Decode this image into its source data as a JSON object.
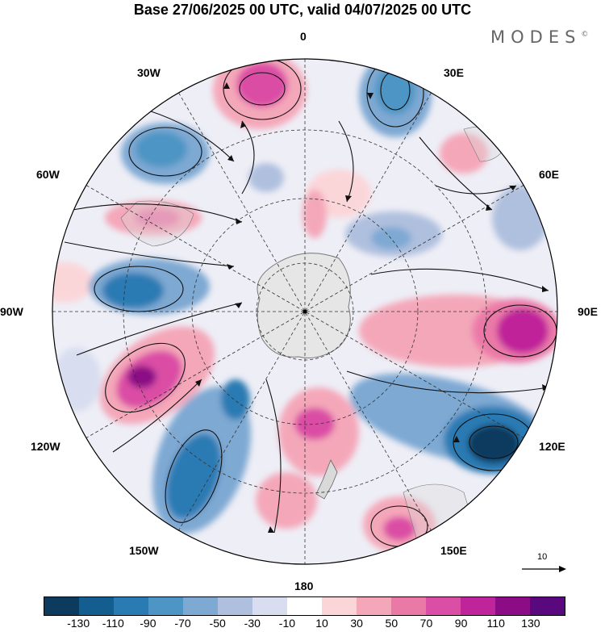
{
  "header": {
    "title": "Base 27/06/2025 00 UTC, valid 04/07/2025 00 UTC",
    "brand": "MODES",
    "brand_mark": "©"
  },
  "map": {
    "projection": "South polar stereographic",
    "longitude_labels": {
      "top": "0",
      "upper_right": "30E",
      "right_upper": "60E",
      "right": "90E",
      "right_lower": "120E",
      "lower_right": "150E",
      "bottom": "180",
      "lower_left": "150W",
      "left_lower": "120W",
      "left": "90W",
      "left_upper": "60W",
      "upper_left": "30W"
    },
    "reference_vector_label": "10"
  },
  "colorbar": {
    "tick_labels": [
      "-130",
      "-110",
      "-90",
      "-70",
      "-50",
      "-30",
      "-10",
      "10",
      "30",
      "50",
      "70",
      "90",
      "110",
      "130"
    ],
    "colors": [
      "#0c3b5e",
      "#135d8f",
      "#2a7ab3",
      "#4d95c4",
      "#7ea9d3",
      "#afc0de",
      "#d8def0",
      "#ffffff",
      "#fbd6d9",
      "#f4a7b9",
      "#eb79a8",
      "#db4ea5",
      "#c0249a",
      "#8c0c86",
      "#59087e"
    ]
  }
}
